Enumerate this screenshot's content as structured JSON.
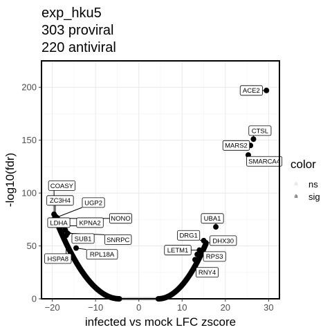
{
  "title_lines": [
    "exp_hku5",
    "303 proviral",
    "220 antiviral"
  ],
  "chart_data": {
    "type": "scatter",
    "title": "exp_hku5\n303 proviral\n220 antiviral",
    "xlabel": "infected vs mock LFC zscore",
    "ylabel": "-log10(fdr)",
    "xlim": [
      -22.5,
      32.5
    ],
    "ylim": [
      0,
      225
    ],
    "x_ticks": [
      -20,
      -10,
      0,
      10,
      20,
      30
    ],
    "y_ticks": [
      0,
      50,
      100,
      150,
      200
    ],
    "grid": true,
    "legend": {
      "title": "color",
      "position": "right",
      "entries": [
        {
          "key": "ns",
          "label": "ns",
          "color": "#cccccc"
        },
        {
          "key": "sig",
          "label": "sig",
          "color": "#000000"
        }
      ]
    },
    "background_curve": {
      "description": "dense band of genes",
      "ns_range": [
        -4.5,
        4.5
      ],
      "left": {
        "x_range": [
          -19.5,
          -4.5
        ],
        "y_at_end": 78
      },
      "right": {
        "x_range": [
          4.5,
          15.5
        ],
        "y_at_end": 52
      }
    },
    "labeled_points": [
      {
        "gene": "ACE2",
        "x": 29.5,
        "y": 197,
        "lx": 26.0,
        "ly": 197
      },
      {
        "gene": "CTSL",
        "x": 26.5,
        "y": 151,
        "lx": 28.0,
        "ly": 159
      },
      {
        "gene": "MARS2",
        "x": 25.8,
        "y": 145,
        "lx": 22.5,
        "ly": 145
      },
      {
        "gene": "SMARCA4",
        "x": 25.3,
        "y": 136,
        "lx": 29.0,
        "ly": 130
      },
      {
        "gene": "UBA1",
        "x": 17.8,
        "y": 68,
        "lx": 17.0,
        "ly": 76
      },
      {
        "gene": "DRG1",
        "x": 15.0,
        "y": 55,
        "lx": 11.5,
        "ly": 60
      },
      {
        "gene": "DHX30",
        "x": 15.5,
        "y": 53,
        "lx": 19.5,
        "ly": 55
      },
      {
        "gene": "LETM1",
        "x": 14.0,
        "y": 46,
        "lx": 9.0,
        "ly": 46
      },
      {
        "gene": "RPS3",
        "x": 13.5,
        "y": 42,
        "lx": 17.5,
        "ly": 40
      },
      {
        "gene": "RNY4",
        "x": 13.0,
        "y": 37,
        "lx": 15.8,
        "ly": 25
      },
      {
        "gene": "COASY",
        "x": -19.6,
        "y": 80,
        "lx": -17.8,
        "ly": 107
      },
      {
        "gene": "ZC3H4",
        "x": -19.3,
        "y": 78,
        "lx": -18.2,
        "ly": 93
      },
      {
        "gene": "UGP2",
        "x": -19.0,
        "y": 77,
        "lx": -10.5,
        "ly": 91
      },
      {
        "gene": "NONO",
        "x": -18.8,
        "y": 76,
        "lx": -4.2,
        "ly": 76
      },
      {
        "gene": "LDHA",
        "x": -18.5,
        "y": 74,
        "lx": -18.5,
        "ly": 72
      },
      {
        "gene": "KPNA2",
        "x": -17.5,
        "y": 69,
        "lx": -11.3,
        "ly": 72
      },
      {
        "gene": "SUB1",
        "x": -17.0,
        "y": 65,
        "lx": -12.9,
        "ly": 57
      },
      {
        "gene": "SNRPC",
        "x": -16.5,
        "y": 62,
        "lx": -4.8,
        "ly": 56
      },
      {
        "gene": "HSPA8",
        "x": -16.8,
        "y": 60,
        "lx": -18.7,
        "ly": 38
      },
      {
        "gene": "RPL18A",
        "x": -14.5,
        "y": 48,
        "lx": -8.5,
        "ly": 42
      }
    ]
  }
}
